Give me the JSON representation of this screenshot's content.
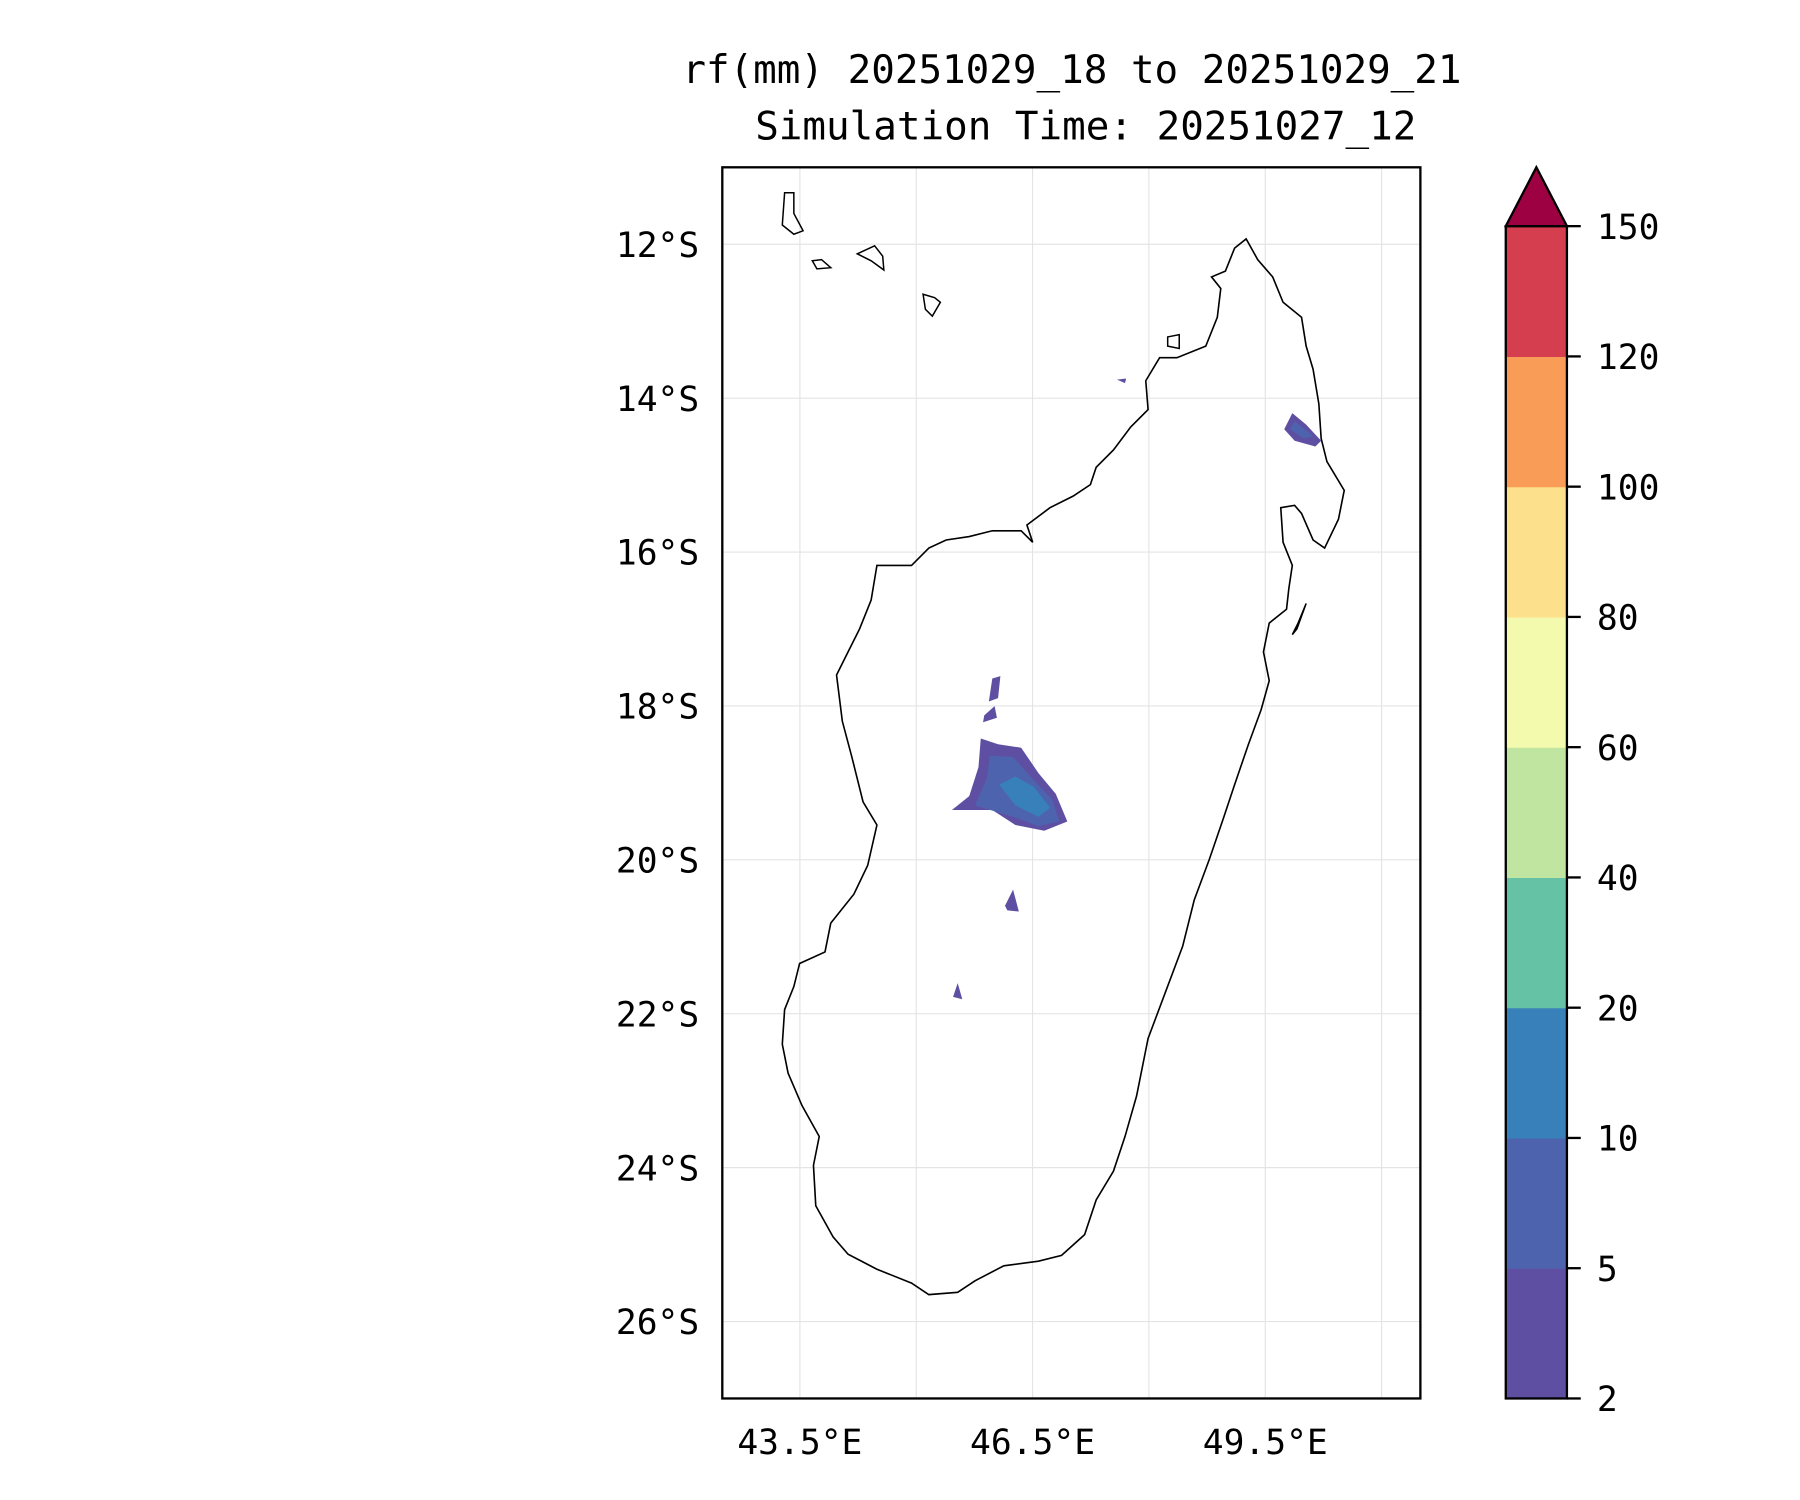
{
  "chart_data": {
    "type": "heatmap",
    "subtype": "filled-contour-map",
    "title": "rf(mm) 20251029_18 to 20251029_21",
    "subtitle": "Simulation Time: 20251027_12",
    "xlabel": "",
    "ylabel": "",
    "lon_range": [
      42.5,
      51.5
    ],
    "lat_range": [
      -27,
      -11
    ],
    "x_ticks": [
      {
        "value": 43.5,
        "label": "43.5°E"
      },
      {
        "value": 46.5,
        "label": "46.5°E"
      },
      {
        "value": 49.5,
        "label": "49.5°E"
      }
    ],
    "y_ticks": [
      {
        "value": -12,
        "label": "12°S"
      },
      {
        "value": -14,
        "label": "14°S"
      },
      {
        "value": -16,
        "label": "16°S"
      },
      {
        "value": -18,
        "label": "18°S"
      },
      {
        "value": -20,
        "label": "20°S"
      },
      {
        "value": -22,
        "label": "22°S"
      },
      {
        "value": -24,
        "label": "24°S"
      },
      {
        "value": -26,
        "label": "26°S"
      }
    ],
    "grid": true,
    "colorbar": {
      "levels": [
        2,
        5,
        10,
        20,
        40,
        60,
        80,
        100,
        120,
        150
      ],
      "labels": [
        "2",
        "5",
        "10",
        "20",
        "40",
        "60",
        "80",
        "100",
        "120",
        "150"
      ],
      "colors": [
        "#5e4fa2",
        "#4e63ad",
        "#3880ba",
        "#66c2a5",
        "#bfe5a0",
        "#f4faad",
        "#fce08b",
        "#f99c58",
        "#d53e4f"
      ],
      "extend_color": "#9e0142",
      "extend": "max",
      "placement": "right"
    },
    "rain_areas": [
      {
        "region": "central highlands (~46.2E, 19.2S)",
        "max_level": "10-20"
      },
      {
        "region": "northeast coast (~49.9E, 14.5S)",
        "max_level": "5-10"
      },
      {
        "region": "scattered small cells",
        "max_level": "2-5"
      }
    ]
  }
}
